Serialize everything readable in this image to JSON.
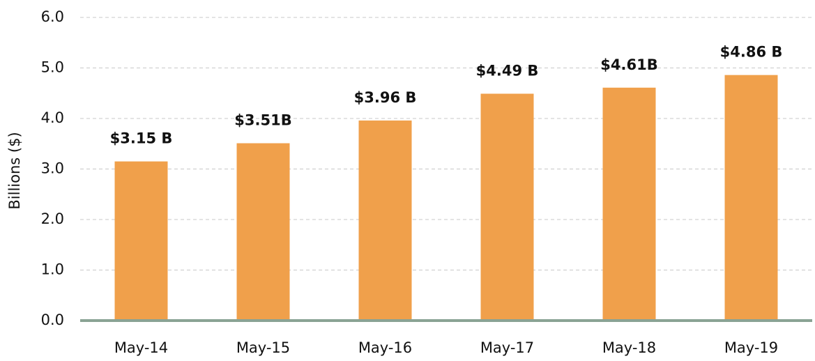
{
  "chart_data": {
    "type": "bar",
    "y_label": "Billions ($)",
    "categories": [
      "May-14",
      "May-15",
      "May-16",
      "May-17",
      "May-18",
      "May-19"
    ],
    "values": [
      3.15,
      3.51,
      3.96,
      4.49,
      4.61,
      4.86
    ],
    "value_labels": [
      "$3.15 B",
      "$3.51B",
      "$3.96 B",
      "$4.49 B",
      "$4.61B",
      "$4.86 B"
    ],
    "color": "#f0a04b",
    "ylim": [
      0,
      6
    ],
    "yticks": [
      {
        "value": 0,
        "label": "0.0"
      },
      {
        "value": 1,
        "label": "1.0"
      },
      {
        "value": 2,
        "label": "2.0"
      },
      {
        "value": 3,
        "label": "3.0"
      },
      {
        "value": 4,
        "label": "4.0"
      },
      {
        "value": 5,
        "label": "5.0"
      },
      {
        "value": 6,
        "label": "6.0"
      }
    ],
    "grid": true
  }
}
